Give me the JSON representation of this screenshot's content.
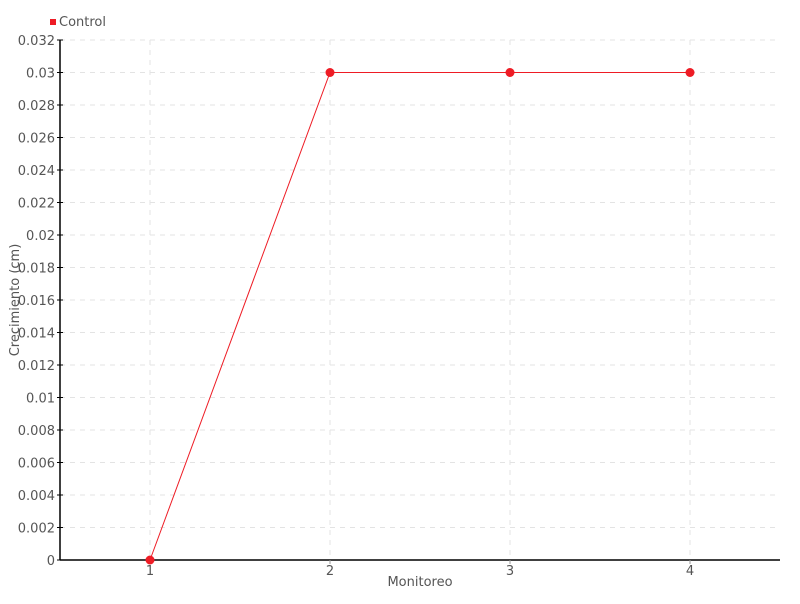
{
  "chart_data": {
    "type": "line",
    "title": "",
    "xlabel": "Monitoreo",
    "ylabel": "Crecimiento (cm)",
    "categories": [
      "1",
      "2",
      "3",
      "4"
    ],
    "series": [
      {
        "name": "Control",
        "values": [
          0,
          0.03,
          0.03,
          0.03
        ],
        "color": "#ee1c25"
      }
    ],
    "ylim": [
      0,
      0.032
    ],
    "yticks": [
      "0",
      "0.002",
      "0.004",
      "0.006",
      "0.008",
      "0.01",
      "0.012",
      "0.014",
      "0.016",
      "0.018",
      "0.02",
      "0.022",
      "0.024",
      "0.026",
      "0.028",
      "0.03",
      "0.032"
    ],
    "grid": true,
    "legend_position": "top-left"
  }
}
